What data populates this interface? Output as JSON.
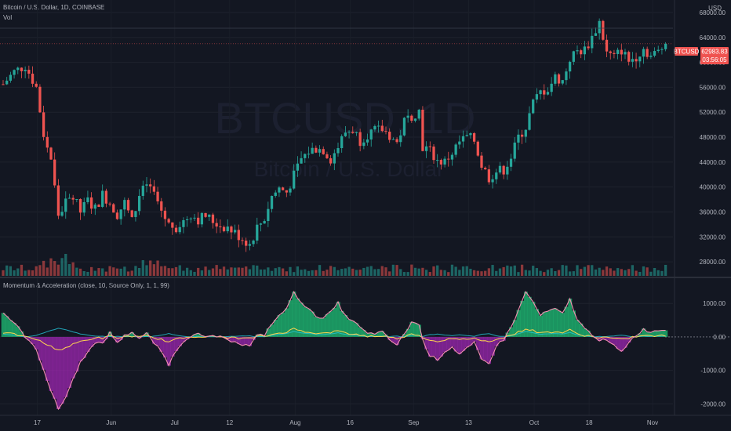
{
  "header": {
    "title": "Bitcoin / U.S. Dollar, 1D, COINBASE",
    "vol_label": "Vol",
    "currency": "USD"
  },
  "watermark": {
    "symbol": "BTCUSD, 1D",
    "name": "Bitcoin / U.S. Dollar"
  },
  "indicator": {
    "label": "Momentum & Acceleration (close, 10, Source Only, 1, 1, 99)"
  },
  "price_badge": {
    "symbol": "BTCUSD",
    "price": "62983.83",
    "countdown": "03:56:05"
  },
  "colors": {
    "background": "#131722",
    "up": "#26a69a",
    "down": "#ef5350",
    "momentum_line": "#f48fb1",
    "accel_line": "#ffd54f",
    "positive_fill": "#1fbf75",
    "negative_fill": "#9c27b0",
    "secondary_fill": "#26c6da"
  },
  "chart_data": [
    {
      "type": "candlestick",
      "title": "Bitcoin / U.S. Dollar, 1D, COINBASE",
      "ylabel": "USD",
      "ylim": [
        26000,
        68500
      ],
      "y_ticks": [
        "68000.00",
        "64000.00",
        "60000.00",
        "56000.00",
        "52000.00",
        "48000.00",
        "44000.00",
        "40000.00",
        "36000.00",
        "32000.00",
        "28000.00"
      ],
      "x_ticks": [
        "17",
        "Jun",
        "Jul",
        "12",
        "Aug",
        "16",
        "Sep",
        "13",
        "Oct",
        "18",
        "Nov"
      ],
      "last_price": 62983.83,
      "price_path": [
        [
          0,
          56500
        ],
        [
          3,
          58500
        ],
        [
          6,
          59500
        ],
        [
          9,
          56000
        ],
        [
          11,
          48500
        ],
        [
          13,
          44500
        ],
        [
          15,
          35500
        ],
        [
          17,
          37500
        ],
        [
          19,
          38500
        ],
        [
          21,
          36000
        ],
        [
          23,
          37800
        ],
        [
          25,
          36500
        ],
        [
          27,
          38800
        ],
        [
          29,
          37500
        ],
        [
          31,
          35600
        ],
        [
          33,
          37500
        ],
        [
          35,
          34500
        ],
        [
          37,
          38500
        ],
        [
          39,
          40500
        ],
        [
          41,
          39000
        ],
        [
          43,
          36200
        ],
        [
          45,
          34000
        ],
        [
          47,
          33600
        ],
        [
          49,
          34500
        ],
        [
          51,
          35700
        ],
        [
          53,
          34800
        ],
        [
          55,
          35400
        ],
        [
          57,
          34500
        ],
        [
          59,
          33800
        ],
        [
          61,
          33500
        ],
        [
          63,
          32600
        ],
        [
          65,
          31700
        ],
        [
          67,
          30800
        ],
        [
          69,
          33500
        ],
        [
          71,
          35000
        ],
        [
          73,
          38500
        ],
        [
          75,
          39800
        ],
        [
          77,
          39200
        ],
        [
          79,
          41800
        ],
        [
          81,
          44500
        ],
        [
          83,
          45700
        ],
        [
          85,
          46200
        ],
        [
          87,
          46000
        ],
        [
          89,
          44500
        ],
        [
          91,
          46500
        ],
        [
          93,
          48800
        ],
        [
          95,
          49200
        ],
        [
          97,
          47500
        ],
        [
          99,
          48500
        ],
        [
          101,
          49000
        ],
        [
          103,
          49200
        ],
        [
          105,
          48300
        ],
        [
          107,
          47000
        ],
        [
          109,
          50500
        ],
        [
          111,
          51500
        ],
        [
          113,
          52200
        ],
        [
          114,
          46500
        ],
        [
          116,
          45800
        ],
        [
          118,
          44200
        ],
        [
          120,
          44000
        ],
        [
          122,
          45500
        ],
        [
          124,
          47200
        ],
        [
          126,
          48000
        ],
        [
          128,
          47500
        ],
        [
          130,
          43500
        ],
        [
          132,
          41500
        ],
        [
          134,
          42500
        ],
        [
          136,
          42800
        ],
        [
          138,
          44800
        ],
        [
          140,
          48000
        ],
        [
          142,
          49600
        ],
        [
          144,
          53500
        ],
        [
          146,
          55200
        ],
        [
          148,
          55800
        ],
        [
          150,
          57600
        ],
        [
          152,
          57000
        ],
        [
          154,
          60600
        ],
        [
          156,
          61800
        ],
        [
          158,
          62000
        ],
        [
          160,
          64000
        ],
        [
          162,
          66500
        ],
        [
          164,
          61500
        ],
        [
          166,
          60800
        ],
        [
          168,
          62000
        ],
        [
          170,
          60200
        ],
        [
          172,
          61000
        ],
        [
          174,
          62200
        ],
        [
          176,
          61000
        ],
        [
          178,
          61700
        ],
        [
          180,
          62983.83
        ]
      ],
      "volume_scale": [
        0,
        5
      ]
    },
    {
      "type": "area",
      "title": "Momentum & Acceleration (close, 10, Source Only, 1, 1, 99)",
      "ylim": [
        -2250,
        1450
      ],
      "y_ticks": [
        "1000.00",
        "0.00",
        "-1000.00",
        "-2000.00"
      ],
      "series": [
        {
          "name": "",
          "points": [
            [
              0,
              720
            ],
            [
              3,
              420
            ],
            [
              6,
              10
            ],
            [
              9,
              -380
            ],
            [
              11,
              -960
            ],
            [
              13,
              -1620
            ],
            [
              15,
              -2150
            ],
            [
              17,
              -1800
            ],
            [
              19,
              -1250
            ],
            [
              21,
              -760
            ],
            [
              23,
              -420
            ],
            [
              25,
              -210
            ],
            [
              27,
              -180
            ],
            [
              29,
              120
            ],
            [
              31,
              -160
            ],
            [
              33,
              30
            ],
            [
              35,
              150
            ],
            [
              37,
              -40
            ],
            [
              39,
              100
            ],
            [
              41,
              -180
            ],
            [
              43,
              -440
            ],
            [
              45,
              -820
            ],
            [
              47,
              -400
            ],
            [
              49,
              -120
            ],
            [
              51,
              40
            ],
            [
              53,
              80
            ],
            [
              55,
              -30
            ],
            [
              57,
              40
            ],
            [
              59,
              -10
            ],
            [
              61,
              -110
            ],
            [
              63,
              -120
            ],
            [
              65,
              -230
            ],
            [
              67,
              -260
            ],
            [
              69,
              40
            ],
            [
              71,
              60
            ],
            [
              73,
              400
            ],
            [
              75,
              620
            ],
            [
              77,
              860
            ],
            [
              79,
              1320
            ],
            [
              81,
              1050
            ],
            [
              83,
              820
            ],
            [
              85,
              620
            ],
            [
              87,
              580
            ],
            [
              89,
              730
            ],
            [
              91,
              1010
            ],
            [
              93,
              620
            ],
            [
              95,
              480
            ],
            [
              97,
              280
            ],
            [
              99,
              90
            ],
            [
              101,
              110
            ],
            [
              103,
              140
            ],
            [
              105,
              -80
            ],
            [
              107,
              -240
            ],
            [
              109,
              90
            ],
            [
              111,
              440
            ],
            [
              113,
              380
            ],
            [
              114,
              -100
            ],
            [
              116,
              -560
            ],
            [
              118,
              -670
            ],
            [
              120,
              -440
            ],
            [
              122,
              -300
            ],
            [
              124,
              -520
            ],
            [
              126,
              -350
            ],
            [
              128,
              -180
            ],
            [
              130,
              -680
            ],
            [
              132,
              -800
            ],
            [
              134,
              -250
            ],
            [
              136,
              -80
            ],
            [
              138,
              290
            ],
            [
              140,
              780
            ],
            [
              142,
              1350
            ],
            [
              144,
              1030
            ],
            [
              146,
              640
            ],
            [
              148,
              770
            ],
            [
              150,
              830
            ],
            [
              152,
              690
            ],
            [
              154,
              1120
            ],
            [
              156,
              520
            ],
            [
              158,
              240
            ],
            [
              160,
              80
            ],
            [
              162,
              -90
            ],
            [
              164,
              -110
            ],
            [
              166,
              -270
            ],
            [
              168,
              -450
            ],
            [
              170,
              -150
            ],
            [
              172,
              60
            ],
            [
              174,
              220
            ],
            [
              176,
              150
            ],
            [
              178,
              200
            ],
            [
              180,
              220
            ]
          ]
        }
      ]
    }
  ]
}
